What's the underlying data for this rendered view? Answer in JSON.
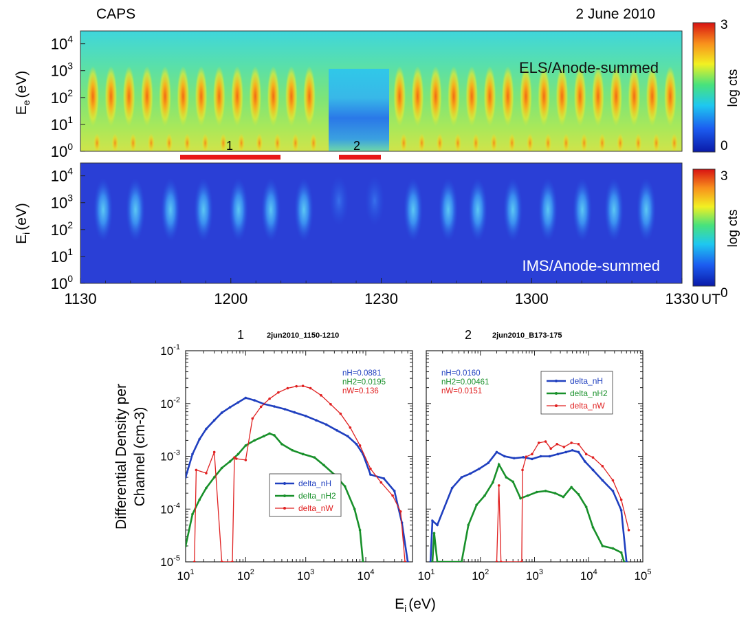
{
  "header": {
    "instrument": "CAPS",
    "date": "2 June 2010"
  },
  "chart_data": [
    {
      "type": "heatmap",
      "panel": "top",
      "label": "ELS/Anode-summed",
      "ylabel_base": "E",
      "ylabel_sub": "e",
      "ylabel_unit": "(eV)",
      "y_scale": "log",
      "ylim": [
        1,
        30000
      ],
      "y_ticks": [
        {
          "base": "10",
          "exp": "0",
          "value": 1
        },
        {
          "base": "10",
          "exp": "1",
          "value": 10
        },
        {
          "base": "10",
          "exp": "2",
          "value": 100
        },
        {
          "base": "10",
          "exp": "3",
          "value": 1000
        },
        {
          "base": "10",
          "exp": "4",
          "value": 10000
        }
      ],
      "colorbar": {
        "label": "log cts",
        "min_label": "0",
        "max_label": "3",
        "min": 0,
        "max": 3
      },
      "pulse_count": 33,
      "gap_interval_ut": [
        "1222",
        "1232"
      ]
    },
    {
      "type": "heatmap",
      "panel": "middle",
      "label": "IMS/Anode-summed",
      "ylabel_base": "E",
      "ylabel_sub": "i",
      "ylabel_unit": "(eV)",
      "y_scale": "log",
      "ylim": [
        1,
        30000
      ],
      "y_ticks": [
        {
          "base": "10",
          "exp": "0",
          "value": 1
        },
        {
          "base": "10",
          "exp": "1",
          "value": 10
        },
        {
          "base": "10",
          "exp": "2",
          "value": 100
        },
        {
          "base": "10",
          "exp": "3",
          "value": 1000
        },
        {
          "base": "10",
          "exp": "4",
          "value": 10000
        }
      ],
      "x_ticks": [
        "1130",
        "1200",
        "1230",
        "1300",
        "1330"
      ],
      "x_unit": "UT",
      "colorbar": {
        "label": "log cts",
        "min_label": "0",
        "max_label": "3",
        "min": 0,
        "max": 3
      },
      "pulse_count": 16
    },
    {
      "type": "line",
      "panel": "bottom-left",
      "number": "1",
      "title": "2jun2010_1150-1210",
      "x_scale": "log",
      "y_scale": "log",
      "xlim": [
        10,
        60000
      ],
      "ylim": [
        1e-05,
        0.1
      ],
      "x_ticks": [
        {
          "base": "10",
          "exp": "1",
          "value": 10
        },
        {
          "base": "10",
          "exp": "2",
          "value": 100
        },
        {
          "base": "10",
          "exp": "3",
          "value": 1000
        },
        {
          "base": "10",
          "exp": "4",
          "value": 10000
        }
      ],
      "y_ticks": [
        {
          "base": "10",
          "exp": "-5",
          "value": 1e-05
        },
        {
          "base": "10",
          "exp": "-4",
          "value": 0.0001
        },
        {
          "base": "10",
          "exp": "-3",
          "value": 0.001
        },
        {
          "base": "10",
          "exp": "-2",
          "value": 0.01
        },
        {
          "base": "10",
          "exp": "-1",
          "value": 0.1
        }
      ],
      "annotations": [
        {
          "text": "nH=0.0881",
          "color": "#1f3fbf"
        },
        {
          "text": "nH2=0.0195",
          "color": "#18902a"
        },
        {
          "text": "nW=0.136",
          "color": "#e02020"
        }
      ],
      "legend_position": "bottom-center",
      "series": [
        {
          "name": "delta_nH",
          "color": "#1f3fbf",
          "x": [
            10,
            13,
            17,
            22,
            30,
            40,
            55,
            75,
            100,
            140,
            200,
            300,
            450,
            650,
            1000,
            1500,
            2200,
            3300,
            5000,
            7000,
            9000,
            12000,
            20000,
            30000,
            40000,
            50000
          ],
          "y": [
            0.0004,
            0.0011,
            0.0021,
            0.0033,
            0.0048,
            0.0067,
            0.0085,
            0.0105,
            0.0128,
            0.0115,
            0.0098,
            0.0088,
            0.0078,
            0.0068,
            0.0058,
            0.0048,
            0.004,
            0.0031,
            0.0024,
            0.0017,
            0.0011,
            0.00045,
            0.00038,
            0.00022,
            5.5e-05,
            1e-05
          ]
        },
        {
          "name": "delta_nH2",
          "color": "#18902a",
          "x": [
            10,
            13,
            17,
            22,
            30,
            40,
            55,
            75,
            100,
            140,
            200,
            250,
            300,
            400,
            600,
            900,
            1400,
            2000,
            3000,
            4500,
            6500,
            8000,
            9000
          ],
          "y": [
            2e-05,
            8e-05,
            0.00015,
            0.00025,
            0.0004,
            0.0006,
            0.0008,
            0.0011,
            0.0016,
            0.002,
            0.0024,
            0.0027,
            0.0025,
            0.0017,
            0.0013,
            0.0011,
            0.00095,
            0.00068,
            0.00045,
            0.00027,
            0.0001,
            4e-05,
            1e-05
          ]
        },
        {
          "name": "delta_nW",
          "color": "#e02020",
          "x": [
            14,
            15,
            22,
            30,
            40,
            60,
            65,
            70,
            100,
            130,
            180,
            250,
            350,
            500,
            700,
            900,
            1200,
            1800,
            2600,
            3800,
            5500,
            8000,
            12000,
            18000,
            28000,
            38000,
            45000
          ],
          "y": [
            1e-05,
            0.00055,
            0.00048,
            0.0012,
            1e-05,
            1e-05,
            0.00095,
            0.0009,
            0.00085,
            0.0052,
            0.0087,
            0.0123,
            0.0162,
            0.0195,
            0.0212,
            0.0215,
            0.0195,
            0.0143,
            0.0097,
            0.0064,
            0.0035,
            0.0016,
            0.00058,
            0.00032,
            0.00018,
            9e-05,
            1e-05
          ]
        }
      ]
    },
    {
      "type": "line",
      "panel": "bottom-right",
      "number": "2",
      "title": "2jun2010_B173-175",
      "x_scale": "log",
      "y_scale": "log",
      "xlim": [
        10,
        100000
      ],
      "ylim": [
        1e-05,
        0.1
      ],
      "x_ticks": [
        {
          "base": "10",
          "exp": "1",
          "value": 10
        },
        {
          "base": "10",
          "exp": "2",
          "value": 100
        },
        {
          "base": "10",
          "exp": "3",
          "value": 1000
        },
        {
          "base": "10",
          "exp": "4",
          "value": 10000
        },
        {
          "base": "10",
          "exp": "5",
          "value": 100000
        }
      ],
      "annotations": [
        {
          "text": "nH=0.0160",
          "color": "#1f3fbf"
        },
        {
          "text": "nH2=0.00461",
          "color": "#18902a"
        },
        {
          "text": "nW=0.0151",
          "color": "#e02020"
        }
      ],
      "legend_position": "top-right",
      "series": [
        {
          "name": "delta_nH",
          "color": "#1f3fbf",
          "x": [
            12,
            13,
            16,
            30,
            45,
            65,
            95,
            140,
            200,
            280,
            420,
            620,
            900,
            1300,
            1900,
            2700,
            3800,
            5000,
            6500,
            8500,
            12000,
            18000,
            28000,
            40000,
            50000
          ],
          "y": [
            1e-05,
            6e-05,
            5e-05,
            0.00025,
            0.0004,
            0.00047,
            0.00058,
            0.00075,
            0.0012,
            0.001,
            0.00092,
            0.00096,
            0.00089,
            0.001,
            0.001,
            0.0011,
            0.0012,
            0.0013,
            0.0012,
            0.0008,
            0.00055,
            0.00035,
            0.00022,
            9.5e-05,
            1e-05
          ]
        },
        {
          "name": "delta_nH2",
          "color": "#18902a",
          "x": [
            13,
            14,
            16,
            45,
            60,
            85,
            120,
            170,
            220,
            300,
            400,
            550,
            750,
            1100,
            1600,
            2400,
            3400,
            4800,
            6500,
            9000,
            12000,
            18000,
            28000,
            40000,
            45000
          ],
          "y": [
            1e-05,
            3.5e-05,
            1e-05,
            1e-05,
            5e-05,
            0.00012,
            0.00018,
            0.00032,
            0.0007,
            0.0004,
            0.00033,
            0.00016,
            0.00018,
            0.00021,
            0.00022,
            0.0002,
            0.00017,
            0.00026,
            0.00019,
            0.00011,
            4.5e-05,
            2e-05,
            1.8e-05,
            1.5e-05,
            1e-05
          ]
        },
        {
          "name": "delta_nW",
          "color": "#e02020",
          "x": [
            200,
            220,
            240,
            580,
            600,
            700,
            900,
            1200,
            1600,
            2000,
            2600,
            3500,
            4800,
            6500,
            9000,
            12000,
            18000,
            28000,
            40000,
            55000
          ],
          "y": [
            1e-05,
            0.00028,
            1e-05,
            1e-05,
            0.00055,
            0.00098,
            0.0011,
            0.0018,
            0.0019,
            0.0014,
            0.0017,
            0.0015,
            0.0018,
            0.0017,
            0.0011,
            0.00095,
            0.00065,
            0.00035,
            0.00015,
            4e-05
          ]
        }
      ]
    }
  ],
  "intervals": [
    {
      "label": "1",
      "start_ut": "1150",
      "end_ut": "1210"
    },
    {
      "label": "2",
      "start_ut": "1224",
      "end_ut": "1230"
    }
  ],
  "bottom_ylabel_line1": "Differential Density per",
  "bottom_ylabel_line2": "Channel (cm-3)",
  "bottom_xlabel_base": "E",
  "bottom_xlabel_sub": "i",
  "bottom_xlabel_unit": "(eV)"
}
